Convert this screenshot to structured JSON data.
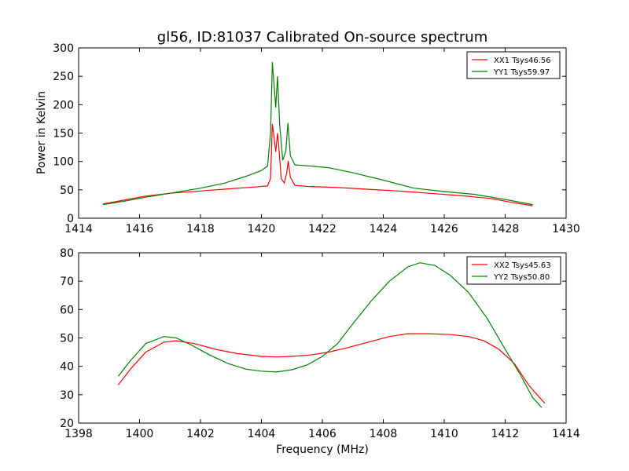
{
  "figure": {
    "title": "gl56, ID:81037 Calibrated On-source spectrum",
    "background": "#ffffff"
  },
  "chart_data": [
    {
      "type": "line",
      "title": "",
      "xlabel": "",
      "ylabel": "Power in Kelvin",
      "xlim": [
        1414,
        1430
      ],
      "ylim": [
        0,
        300
      ],
      "xticks": [
        1414,
        1416,
        1418,
        1420,
        1422,
        1424,
        1426,
        1428,
        1430
      ],
      "yticks": [
        0,
        50,
        100,
        150,
        200,
        250,
        300
      ],
      "grid": false,
      "legend": "top-right",
      "series": [
        {
          "name": "XX1 Tsys46.56",
          "color": "#ff0000",
          "points": [
            [
              1414.8,
              25
            ],
            [
              1415.5,
              32
            ],
            [
              1416.2,
              39
            ],
            [
              1417.0,
              44
            ],
            [
              1418.0,
              48
            ],
            [
              1419.0,
              52
            ],
            [
              1419.8,
              55
            ],
            [
              1420.2,
              57
            ],
            [
              1420.3,
              70
            ],
            [
              1420.36,
              166
            ],
            [
              1420.42,
              140
            ],
            [
              1420.47,
              117
            ],
            [
              1420.53,
              150
            ],
            [
              1420.58,
              118
            ],
            [
              1420.65,
              70
            ],
            [
              1420.75,
              62
            ],
            [
              1420.83,
              80
            ],
            [
              1420.88,
              101
            ],
            [
              1420.95,
              72
            ],
            [
              1421.1,
              58
            ],
            [
              1421.5,
              56
            ],
            [
              1422.5,
              54
            ],
            [
              1423.5,
              51
            ],
            [
              1424.5,
              48
            ],
            [
              1425.5,
              44
            ],
            [
              1426.5,
              40
            ],
            [
              1427.5,
              35
            ],
            [
              1428.2,
              28
            ],
            [
              1428.9,
              22
            ]
          ]
        },
        {
          "name": "YY1 Tsys59.97",
          "color": "#008000",
          "points": [
            [
              1414.8,
              24
            ],
            [
              1415.5,
              30
            ],
            [
              1416.2,
              37
            ],
            [
              1417.0,
              44
            ],
            [
              1418.0,
              53
            ],
            [
              1418.8,
              62
            ],
            [
              1419.5,
              74
            ],
            [
              1420.0,
              84
            ],
            [
              1420.2,
              92
            ],
            [
              1420.3,
              150
            ],
            [
              1420.36,
              275
            ],
            [
              1420.42,
              230
            ],
            [
              1420.47,
              195
            ],
            [
              1420.53,
              250
            ],
            [
              1420.6,
              165
            ],
            [
              1420.7,
              102
            ],
            [
              1420.8,
              118
            ],
            [
              1420.87,
              168
            ],
            [
              1420.95,
              110
            ],
            [
              1421.1,
              94
            ],
            [
              1421.6,
              92
            ],
            [
              1422.2,
              89
            ],
            [
              1423.0,
              80
            ],
            [
              1424.0,
              67
            ],
            [
              1425.0,
              53
            ],
            [
              1426.0,
              47
            ],
            [
              1427.0,
              42
            ],
            [
              1428.0,
              33
            ],
            [
              1428.9,
              24
            ]
          ]
        }
      ]
    },
    {
      "type": "line",
      "title": "",
      "xlabel": "Frequency (MHz)",
      "ylabel": "",
      "xlim": [
        1398,
        1414
      ],
      "ylim": [
        20,
        80
      ],
      "xticks": [
        1398,
        1400,
        1402,
        1404,
        1406,
        1408,
        1410,
        1412,
        1414
      ],
      "yticks": [
        20,
        30,
        40,
        50,
        60,
        70,
        80
      ],
      "grid": false,
      "legend": "top-right",
      "series": [
        {
          "name": "XX2 Tsys45.63",
          "color": "#ff0000",
          "points": [
            [
              1399.3,
              33.5
            ],
            [
              1399.7,
              39
            ],
            [
              1400.2,
              45
            ],
            [
              1400.8,
              48.5
            ],
            [
              1401.2,
              49
            ],
            [
              1401.8,
              48
            ],
            [
              1402.5,
              46
            ],
            [
              1403.2,
              44.5
            ],
            [
              1404.0,
              43.5
            ],
            [
              1404.5,
              43.3
            ],
            [
              1405.0,
              43.5
            ],
            [
              1405.6,
              44
            ],
            [
              1406.2,
              45
            ],
            [
              1406.8,
              46.5
            ],
            [
              1407.5,
              48.5
            ],
            [
              1408.2,
              50.5
            ],
            [
              1408.8,
              51.5
            ],
            [
              1409.5,
              51.5
            ],
            [
              1410.2,
              51.2
            ],
            [
              1410.8,
              50.5
            ],
            [
              1411.3,
              49
            ],
            [
              1411.8,
              46
            ],
            [
              1412.3,
              41
            ],
            [
              1412.8,
              33
            ],
            [
              1413.3,
              27
            ]
          ]
        },
        {
          "name": "YY2 Tsys50.80",
          "color": "#008000",
          "points": [
            [
              1399.3,
              36.5
            ],
            [
              1399.7,
              42
            ],
            [
              1400.2,
              48
            ],
            [
              1400.8,
              50.5
            ],
            [
              1401.2,
              50
            ],
            [
              1401.7,
              47.5
            ],
            [
              1402.3,
              44
            ],
            [
              1402.9,
              41
            ],
            [
              1403.5,
              39
            ],
            [
              1404.0,
              38.3
            ],
            [
              1404.5,
              38
            ],
            [
              1405.0,
              38.8
            ],
            [
              1405.5,
              40.5
            ],
            [
              1406.0,
              43.5
            ],
            [
              1406.5,
              48
            ],
            [
              1407.0,
              55
            ],
            [
              1407.6,
              63
            ],
            [
              1408.2,
              70
            ],
            [
              1408.8,
              75
            ],
            [
              1409.2,
              76.5
            ],
            [
              1409.7,
              75.5
            ],
            [
              1410.2,
              72
            ],
            [
              1410.8,
              66
            ],
            [
              1411.4,
              57
            ],
            [
              1412.0,
              46
            ],
            [
              1412.5,
              37
            ],
            [
              1412.9,
              29
            ],
            [
              1413.2,
              25.5
            ]
          ]
        }
      ]
    }
  ]
}
